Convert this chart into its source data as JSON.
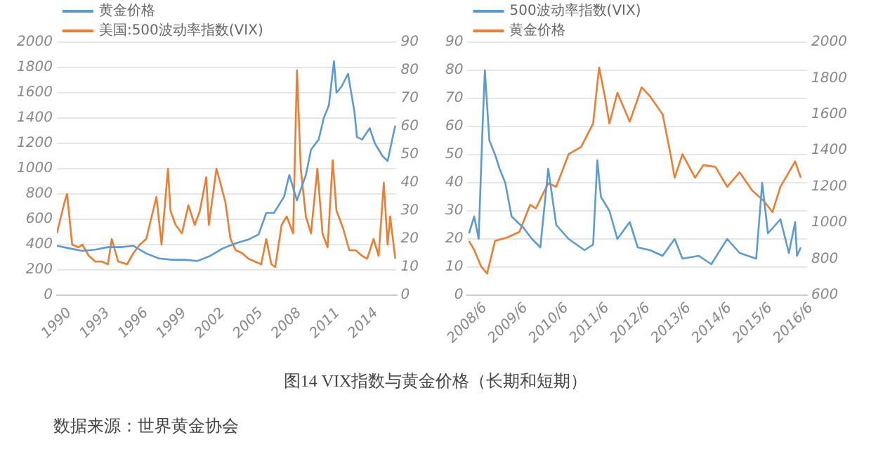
{
  "chart_data": [
    {
      "type": "line",
      "legend": "top left",
      "grid": "y",
      "marker": "none",
      "line_style": "solid",
      "xlim": [
        1990,
        2016.6
      ],
      "xticks": [
        1990,
        1993,
        1996,
        1999,
        2002,
        2005,
        2008,
        2011,
        2014
      ],
      "ylim": [
        0,
        2000
      ],
      "yticks": [
        0,
        200,
        400,
        600,
        800,
        1000,
        1200,
        1400,
        1600,
        1800,
        2000
      ],
      "y2lim": [
        0,
        90
      ],
      "y2ticks": [
        0,
        10,
        20,
        30,
        40,
        50,
        60,
        70,
        80,
        90
      ],
      "annotations": [
        "图14  VIX指数与黄金价格（长期和短期）",
        "数据来源：世界黄金协会"
      ],
      "series": [
        {
          "name": "黄金价格",
          "color": "#5b9bd5",
          "x": [
            1990,
            1991,
            1992,
            1993,
            1994,
            1995,
            1996,
            1997,
            1998,
            1999,
            2000,
            2001,
            2002,
            2003,
            2004,
            2005,
            2005.8,
            2006.4,
            2007,
            2007.8,
            2008.2,
            2008.8,
            2009.5,
            2009.9,
            2010.5,
            2010.9,
            2011.3,
            2011.7,
            2011.9,
            2012.3,
            2012.8,
            2013.3,
            2013.5,
            2013.9,
            2014.5,
            2014.9,
            2015.5,
            2015.9,
            2016.3,
            2016.5
          ],
          "values": [
            390,
            370,
            350,
            360,
            380,
            380,
            390,
            330,
            290,
            280,
            280,
            270,
            310,
            370,
            410,
            440,
            480,
            650,
            650,
            780,
            950,
            750,
            950,
            1150,
            1230,
            1400,
            1500,
            1850,
            1600,
            1650,
            1750,
            1450,
            1250,
            1230,
            1320,
            1200,
            1100,
            1060,
            1250,
            1340
          ]
        },
        {
          "name": "美国:500波动率指数(VIX)",
          "color": "#ed7d31",
          "axis": "y2",
          "x": [
            1990,
            1990.6,
            1990.8,
            1991.2,
            1991.7,
            1992,
            1992.5,
            1993,
            1993.5,
            1994,
            1994.3,
            1994.8,
            1995.5,
            1996,
            1996.5,
            1997,
            1997.8,
            1998.2,
            1998.7,
            1998.9,
            1999.3,
            1999.8,
            2000.3,
            2000.8,
            2001.2,
            2001.7,
            2001.9,
            2002.5,
            2002.8,
            2003.2,
            2003.6,
            2004,
            2004.5,
            2005,
            2005.5,
            2006,
            2006.4,
            2006.8,
            2007.1,
            2007.6,
            2008,
            2008.5,
            2008.8,
            2009.1,
            2009.5,
            2009.9,
            2010.4,
            2010.8,
            2011.2,
            2011.6,
            2011.9,
            2012.4,
            2012.9,
            2013.4,
            2013.9,
            2014.3,
            2014.8,
            2015.2,
            2015.6,
            2015.9,
            2016.1,
            2016.5
          ],
          "values": [
            22,
            33,
            36,
            18,
            17,
            18,
            14,
            12,
            12,
            11,
            20,
            12,
            11,
            15,
            18,
            20,
            35,
            18,
            45,
            30,
            25,
            22,
            32,
            25,
            30,
            42,
            25,
            45,
            40,
            33,
            20,
            16,
            15,
            13,
            12,
            11,
            20,
            11,
            10,
            25,
            28,
            22,
            80,
            45,
            28,
            22,
            45,
            22,
            17,
            48,
            30,
            24,
            16,
            16,
            14,
            13,
            20,
            14,
            40,
            18,
            28,
            13
          ]
        }
      ]
    },
    {
      "type": "line",
      "legend": "top left",
      "grid": "y",
      "marker": "none",
      "line_style": "solid",
      "xlim": [
        "2008-06-01",
        "2016-10-01"
      ],
      "xticks": [
        {
          "value": "2008-06",
          "label": "2008/6"
        },
        {
          "value": "2009-06",
          "label": "2009/6"
        },
        {
          "value": "2010-06",
          "label": "2010/6"
        },
        {
          "value": "2011-06",
          "label": "2011/6"
        },
        {
          "value": "2012-06",
          "label": "2012/6"
        },
        {
          "value": "2013-06",
          "label": "2013/6"
        },
        {
          "value": "2014-06",
          "label": "2014/6"
        },
        {
          "value": "2015-06",
          "label": "2015/6"
        },
        {
          "value": "2016-06",
          "label": "2016/6"
        }
      ],
      "ylim": [
        0,
        90
      ],
      "yticks": [
        0,
        10,
        20,
        30,
        40,
        50,
        60,
        70,
        80,
        90
      ],
      "y2lim": [
        600,
        2000
      ],
      "y2ticks": [
        600,
        800,
        1000,
        1200,
        1400,
        1600,
        1800,
        2000
      ],
      "series": [
        {
          "name": "500波动率指数(VIX)",
          "color": "#5b9bd5",
          "x": [
            "2008-06-15",
            "2008-08-01",
            "2008-09-10",
            "2008-10-15",
            "2008-11-05",
            "2008-12-15",
            "2009-02-05",
            "2009-03-15",
            "2009-05-05",
            "2009-07-01",
            "2009-10-15",
            "2010-01-01",
            "2010-03-15",
            "2010-05-25",
            "2010-08-05",
            "2010-11-25",
            "2011-04-15",
            "2011-07-01",
            "2011-08-08",
            "2011-09-10",
            "2011-11-25",
            "2012-02-05",
            "2012-05-25",
            "2012-08-05",
            "2012-11-25",
            "2013-03-15",
            "2013-07-01",
            "2013-09-10",
            "2014-02-05",
            "2014-05-25",
            "2014-10-15",
            "2015-02-05",
            "2015-07-01",
            "2015-08-24",
            "2015-10-15",
            "2016-02-05",
            "2016-04-20",
            "2016-06-15",
            "2016-07-01",
            "2016-08-05"
          ],
          "values": [
            22,
            28,
            20,
            60,
            80,
            55,
            50,
            45,
            40,
            28,
            24,
            20,
            17,
            45,
            25,
            20,
            16,
            18,
            48,
            35,
            30,
            20,
            26,
            17,
            16,
            14,
            20,
            13,
            14,
            11,
            20,
            15,
            13,
            40,
            22,
            27,
            15,
            26,
            14,
            17
          ]
        },
        {
          "name": "黄金价格",
          "color": "#ed7d31",
          "axis": "y2",
          "x": [
            "2008-06-15",
            "2008-08-01",
            "2008-10-01",
            "2008-11-25",
            "2009-02-05",
            "2009-05-25",
            "2009-09-10",
            "2009-12-15",
            "2010-02-05",
            "2010-05-25",
            "2010-08-05",
            "2010-11-25",
            "2011-03-15",
            "2011-07-01",
            "2011-08-24",
            "2011-10-15",
            "2011-11-25",
            "2012-02-05",
            "2012-05-25",
            "2012-09-10",
            "2012-11-25",
            "2013-03-15",
            "2013-05-25",
            "2013-07-01",
            "2013-09-10",
            "2014-01-01",
            "2014-03-15",
            "2014-07-01",
            "2014-10-15",
            "2015-02-05",
            "2015-05-25",
            "2015-09-10",
            "2015-11-25",
            "2016-02-05",
            "2016-04-20",
            "2016-06-15",
            "2016-08-05"
          ],
          "values": [
            900,
            850,
            760,
            720,
            900,
            920,
            950,
            1100,
            1080,
            1220,
            1200,
            1380,
            1420,
            1550,
            1860,
            1700,
            1550,
            1720,
            1560,
            1750,
            1700,
            1600,
            1380,
            1250,
            1380,
            1250,
            1320,
            1310,
            1200,
            1280,
            1180,
            1120,
            1060,
            1200,
            1280,
            1340,
            1250
          ]
        }
      ]
    }
  ]
}
